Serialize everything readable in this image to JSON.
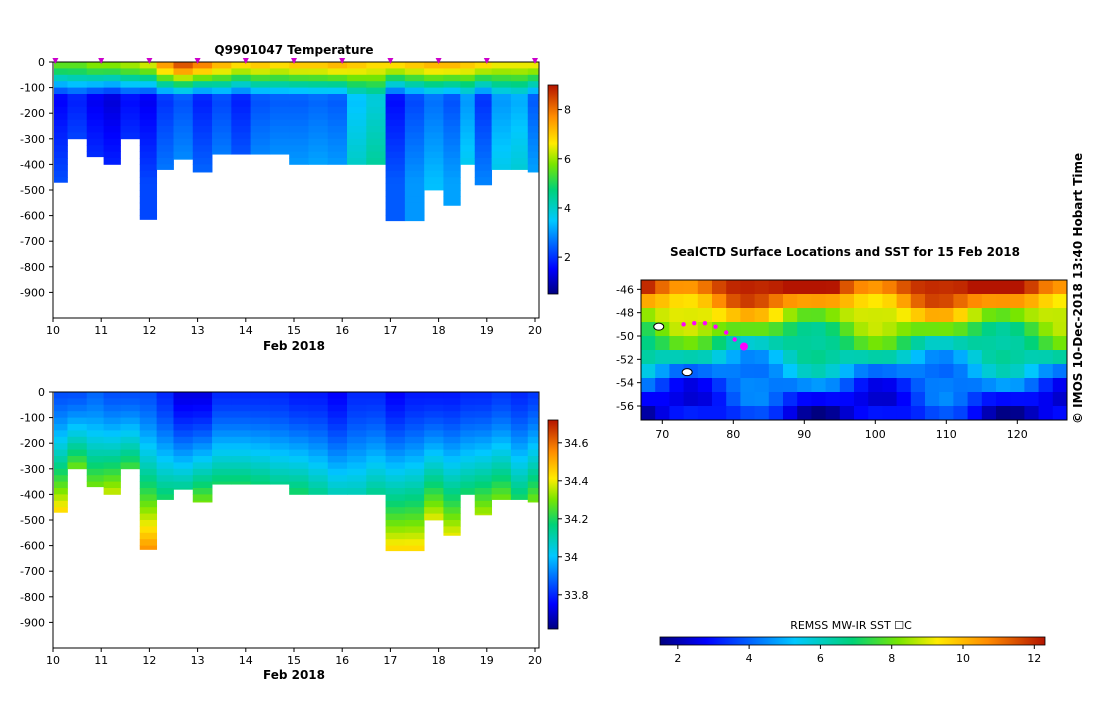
{
  "temperature_plot": {
    "title": "Q9901047  Temperature",
    "xlabel": "Feb 2018",
    "x_ticks": [
      "10",
      "11",
      "12",
      "13",
      "14",
      "15",
      "16",
      "17",
      "18",
      "19",
      "20"
    ],
    "y_ticks": [
      "0",
      "-100",
      "-200",
      "-300",
      "-400",
      "-500",
      "-600",
      "-700",
      "-800",
      "-900"
    ],
    "colorbar_ticks": [
      "2",
      "4",
      "6",
      "8"
    ]
  },
  "salinity_plot": {
    "xlabel": "Feb 2018",
    "x_ticks": [
      "10",
      "11",
      "12",
      "13",
      "14",
      "15",
      "16",
      "17",
      "18",
      "19",
      "20"
    ],
    "y_ticks": [
      "0",
      "-100",
      "-200",
      "-300",
      "-400",
      "-500",
      "-600",
      "-700",
      "-800",
      "-900"
    ],
    "colorbar_ticks": [
      "33.8",
      "34",
      "34.2",
      "34.4",
      "34.6"
    ]
  },
  "map_plot": {
    "title": "SealCTD Surface Locations and SST for 15 Feb 2018",
    "x_ticks": [
      "70",
      "80",
      "90",
      "100",
      "110",
      "120"
    ],
    "y_ticks": [
      "-46",
      "-48",
      "-50",
      "-52",
      "-54",
      "-56"
    ],
    "colorbar_label": "REMSS MW-IR SST ☐C",
    "colorbar_ticks": [
      "2",
      "4",
      "6",
      "8",
      "10",
      "12"
    ]
  },
  "side_label": "©  IMOS 10-Dec-2018 13:40 Hobart Time",
  "chart_data": [
    {
      "type": "heatmap",
      "title": "Q9901047  Temperature",
      "xlabel": "Feb 2018",
      "ylabel": "",
      "xlim": [
        10,
        20
      ],
      "ylim": [
        -1000,
        0
      ],
      "colorbar_range": [
        0.5,
        9
      ],
      "profiles": [
        {
          "day": 10.1,
          "max_depth": 470,
          "surface": 5.5,
          "min": 1.5
        },
        {
          "day": 10.5,
          "max_depth": 300,
          "surface": 5.5,
          "min": 1.8
        },
        {
          "day": 10.9,
          "max_depth": 370,
          "surface": 5.8,
          "min": 1.4
        },
        {
          "day": 11.2,
          "max_depth": 400,
          "surface": 5.8,
          "min": 1.2
        },
        {
          "day": 11.6,
          "max_depth": 300,
          "surface": 6.0,
          "min": 1.6
        },
        {
          "day": 12.0,
          "max_depth": 615,
          "surface": 6.3,
          "min": 1.4
        },
        {
          "day": 12.3,
          "max_depth": 420,
          "surface": 7.5,
          "min": 2.0
        },
        {
          "day": 12.7,
          "max_depth": 380,
          "surface": 8.3,
          "min": 2.3
        },
        {
          "day": 13.1,
          "max_depth": 430,
          "surface": 7.8,
          "min": 1.8
        },
        {
          "day": 13.5,
          "max_depth": 360,
          "surface": 7.2,
          "min": 2.2
        },
        {
          "day": 13.9,
          "max_depth": 360,
          "surface": 6.8,
          "min": 1.8
        },
        {
          "day": 14.3,
          "max_depth": 360,
          "surface": 7.0,
          "min": 2.3
        },
        {
          "day": 14.7,
          "max_depth": 360,
          "surface": 6.8,
          "min": 2.4
        },
        {
          "day": 15.1,
          "max_depth": 400,
          "surface": 7.0,
          "min": 2.4
        },
        {
          "day": 15.5,
          "max_depth": 400,
          "surface": 7.0,
          "min": 2.5
        },
        {
          "day": 15.9,
          "max_depth": 400,
          "surface": 7.2,
          "min": 2.4
        },
        {
          "day": 16.3,
          "max_depth": 400,
          "surface": 7.0,
          "min": 3.4
        },
        {
          "day": 16.7,
          "max_depth": 400,
          "surface": 6.8,
          "min": 3.8
        },
        {
          "day": 17.1,
          "max_depth": 620,
          "surface": 6.8,
          "min": 1.6
        },
        {
          "day": 17.5,
          "max_depth": 620,
          "surface": 7.0,
          "min": 2.2
        },
        {
          "day": 17.9,
          "max_depth": 500,
          "surface": 7.2,
          "min": 2.6
        },
        {
          "day": 18.3,
          "max_depth": 560,
          "surface": 7.2,
          "min": 2.3
        },
        {
          "day": 18.6,
          "max_depth": 400,
          "surface": 7.0,
          "min": 3.0
        },
        {
          "day": 18.9,
          "max_depth": 480,
          "surface": 6.8,
          "min": 2.0
        },
        {
          "day": 19.3,
          "max_depth": 420,
          "surface": 6.5,
          "min": 3.0
        },
        {
          "day": 19.7,
          "max_depth": 420,
          "surface": 6.5,
          "min": 3.2
        },
        {
          "day": 20.0,
          "max_depth": 430,
          "surface": 6.5,
          "min": 2.4
        }
      ],
      "markers": [
        10.05,
        11.0,
        12.0,
        13.0,
        14.0,
        15.0,
        16.0,
        17.0,
        18.0,
        19.0,
        20.0
      ]
    },
    {
      "type": "heatmap",
      "title": "",
      "xlabel": "Feb 2018",
      "ylabel": "",
      "xlim": [
        10,
        20
      ],
      "ylim": [
        -1000,
        0
      ],
      "colorbar_range": [
        33.62,
        34.72
      ],
      "profiles": [
        {
          "day": 10.1,
          "max_depth": 470,
          "surface": 33.85,
          "deep": 34.45
        },
        {
          "day": 10.5,
          "max_depth": 300,
          "surface": 33.85,
          "deep": 34.3
        },
        {
          "day": 10.9,
          "max_depth": 370,
          "surface": 33.88,
          "deep": 34.3
        },
        {
          "day": 11.2,
          "max_depth": 400,
          "surface": 33.85,
          "deep": 34.38
        },
        {
          "day": 11.6,
          "max_depth": 300,
          "surface": 33.85,
          "deep": 34.25
        },
        {
          "day": 12.0,
          "max_depth": 615,
          "surface": 33.85,
          "deep": 34.55
        },
        {
          "day": 12.3,
          "max_depth": 420,
          "surface": 33.8,
          "deep": 34.2
        },
        {
          "day": 12.7,
          "max_depth": 380,
          "surface": 33.72,
          "deep": 34.15
        },
        {
          "day": 13.1,
          "max_depth": 430,
          "surface": 33.72,
          "deep": 34.3
        },
        {
          "day": 13.5,
          "max_depth": 360,
          "surface": 33.8,
          "deep": 34.2
        },
        {
          "day": 13.9,
          "max_depth": 360,
          "surface": 33.8,
          "deep": 34.2
        },
        {
          "day": 14.3,
          "max_depth": 360,
          "surface": 33.8,
          "deep": 34.18
        },
        {
          "day": 14.7,
          "max_depth": 360,
          "surface": 33.8,
          "deep": 34.15
        },
        {
          "day": 15.1,
          "max_depth": 400,
          "surface": 33.78,
          "deep": 34.2
        },
        {
          "day": 15.5,
          "max_depth": 400,
          "surface": 33.78,
          "deep": 34.15
        },
        {
          "day": 15.9,
          "max_depth": 400,
          "surface": 33.75,
          "deep": 34.1
        },
        {
          "day": 16.3,
          "max_depth": 400,
          "surface": 33.8,
          "deep": 34.1
        },
        {
          "day": 16.7,
          "max_depth": 400,
          "surface": 33.8,
          "deep": 34.15
        },
        {
          "day": 17.1,
          "max_depth": 620,
          "surface": 33.75,
          "deep": 34.45
        },
        {
          "day": 17.5,
          "max_depth": 620,
          "surface": 33.78,
          "deep": 34.45
        },
        {
          "day": 17.9,
          "max_depth": 500,
          "surface": 33.78,
          "deep": 34.4
        },
        {
          "day": 18.3,
          "max_depth": 560,
          "surface": 33.78,
          "deep": 34.4
        },
        {
          "day": 18.6,
          "max_depth": 400,
          "surface": 33.8,
          "deep": 34.2
        },
        {
          "day": 18.9,
          "max_depth": 480,
          "surface": 33.8,
          "deep": 34.35
        },
        {
          "day": 19.3,
          "max_depth": 420,
          "surface": 33.82,
          "deep": 34.3
        },
        {
          "day": 19.7,
          "max_depth": 420,
          "surface": 33.8,
          "deep": 34.2
        },
        {
          "day": 20.0,
          "max_depth": 430,
          "surface": 33.82,
          "deep": 34.3
        }
      ]
    },
    {
      "type": "heatmap",
      "title": "SealCTD Surface Locations and SST for 15 Feb 2018",
      "xlim": [
        67,
        127
      ],
      "ylim": [
        -57.2,
        -45.2
      ],
      "colorbar_label": "REMSS MW-IR SST ☐C",
      "colorbar_range": [
        1.5,
        12.3
      ],
      "sst_rows": [
        {
          "lat": -45.8,
          "sst": 11.8
        },
        {
          "lat": -47.0,
          "sst": 10.5
        },
        {
          "lat": -48.2,
          "sst": 9.0
        },
        {
          "lat": -49.4,
          "sst": 7.8
        },
        {
          "lat": -50.6,
          "sst": 6.8
        },
        {
          "lat": -51.8,
          "sst": 5.8
        },
        {
          "lat": -53.0,
          "sst": 4.8
        },
        {
          "lat": -54.2,
          "sst": 3.9
        },
        {
          "lat": -55.4,
          "sst": 3.2
        },
        {
          "lat": -56.6,
          "sst": 2.8
        }
      ],
      "track": [
        {
          "lon": 73.0,
          "lat": -49.0
        },
        {
          "lon": 74.5,
          "lat": -48.9
        },
        {
          "lon": 76.0,
          "lat": -48.9
        },
        {
          "lon": 77.5,
          "lat": -49.2
        },
        {
          "lon": 79.0,
          "lat": -49.7
        },
        {
          "lon": 80.2,
          "lat": -50.3
        },
        {
          "lon": 81.5,
          "lat": -50.9
        }
      ],
      "islands": [
        {
          "lon": 69.5,
          "lat": -49.2
        },
        {
          "lon": 73.5,
          "lat": -53.1
        }
      ]
    }
  ]
}
